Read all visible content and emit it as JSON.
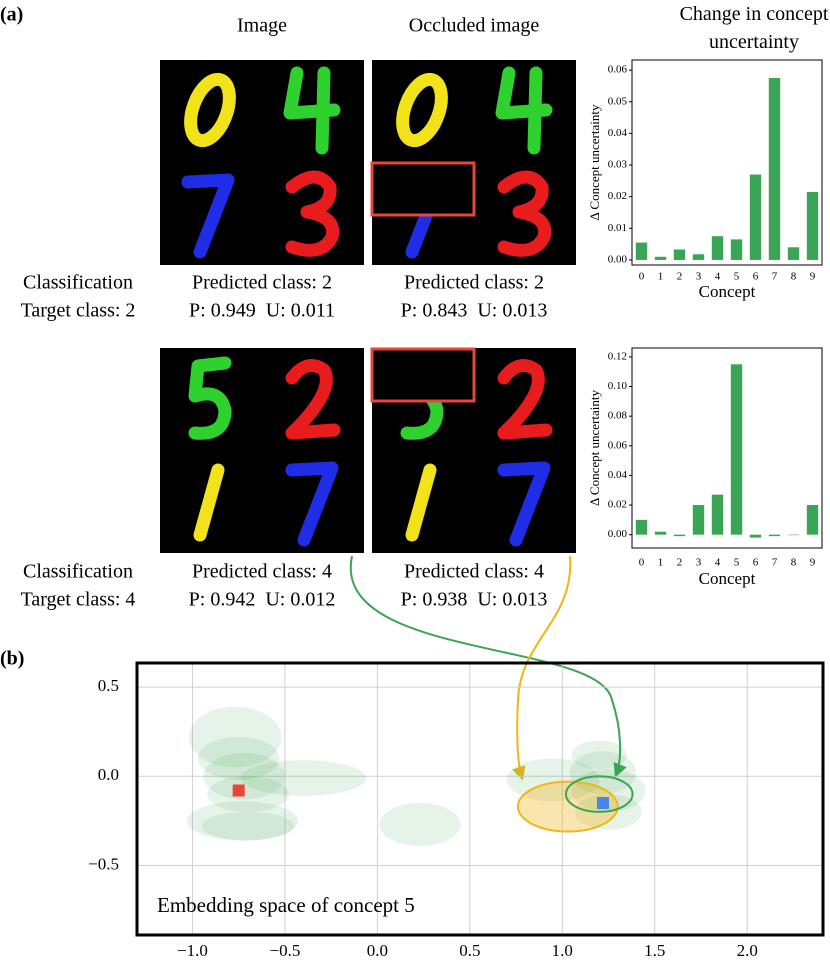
{
  "panel_labels": [
    "(a)",
    "(b)"
  ],
  "column_headers": [
    "Image",
    "Occluded image"
  ],
  "rows": [
    {
      "classification": "Classification",
      "target": "Target class: 2",
      "image": {
        "predicted": "Predicted class: 2",
        "stats": "P: 0.949  U: 0.011"
      },
      "occluded": {
        "predicted": "Predicted class: 2",
        "stats": "P: 0.843  U: 0.013"
      }
    },
    {
      "classification": "Classification",
      "target": "Target class: 4",
      "image": {
        "predicted": "Predicted class: 4",
        "stats": "P: 0.942  U: 0.012"
      },
      "occluded": {
        "predicted": "Predicted class: 4",
        "stats": "P: 0.938  U: 0.013"
      }
    }
  ],
  "chart_data": [
    {
      "type": "bar",
      "title": "Change in concept uncertainty",
      "xlabel": "Concept",
      "ylabel": "Δ Concept uncertainty",
      "categories": [
        "0",
        "1",
        "2",
        "3",
        "4",
        "5",
        "6",
        "7",
        "8",
        "9"
      ],
      "values": [
        0.0055,
        0.001,
        0.0033,
        0.0018,
        0.0075,
        0.0065,
        0.027,
        0.0575,
        0.004,
        0.0215
      ],
      "color": "#3aa655",
      "ylim": [
        -0.0016,
        0.0632
      ],
      "yticks": [
        {
          "value": 0,
          "label": "0.00"
        },
        0.01,
        0.02,
        0.03,
        0.04,
        0.05,
        0.06
      ]
    },
    {
      "type": "bar",
      "xlabel": "Concept",
      "ylabel": "Δ Concept uncertainty",
      "categories": [
        "0",
        "1",
        "2",
        "3",
        "4",
        "5",
        "6",
        "7",
        "8",
        "9"
      ],
      "values": [
        0.01,
        0.002,
        -0.001,
        0.02,
        0.027,
        0.115,
        -0.002,
        -0.001,
        0,
        0.02
      ],
      "color": "#3aa655",
      "ylim": [
        -0.009,
        0.126
      ],
      "yticks": [
        {
          "value": 0,
          "label": "0.00"
        },
        0.02,
        0.04,
        0.06,
        0.08,
        {
          "value": 0.1,
          "label": "0.10"
        },
        0.12
      ]
    },
    {
      "type": "scatter",
      "annotation": "Embedding space of concept 5",
      "grid": true,
      "xlim": [
        -1.3,
        2.41
      ],
      "ylim": [
        -0.89,
        0.635
      ],
      "xticks": [
        {
          "value": -1,
          "label": "−1.0"
        },
        {
          "value": -0.5,
          "label": "−0.5"
        },
        {
          "value": 0,
          "label": "0.0"
        },
        0.5,
        {
          "value": 1,
          "label": "1.0"
        },
        1.5,
        {
          "value": 2,
          "label": "2.0"
        }
      ],
      "yticks": [
        {
          "value": -0.5,
          "label": "−0.5"
        },
        {
          "value": 0,
          "label": "0.0"
        },
        0.5
      ],
      "ellipses": {
        "color": "#3aa655",
        "x": [
          -0.77,
          -0.75,
          -0.72,
          -0.4,
          -0.7,
          -0.73,
          -0.7,
          0.23,
          0.95,
          1.2,
          1.22,
          1.25,
          1.25
        ],
        "y": [
          0.22,
          0.1,
          0.0,
          -0.01,
          -0.1,
          -0.25,
          -0.28,
          -0.27,
          -0.02,
          0.12,
          0.02,
          -0.08,
          -0.2
        ],
        "rx": [
          0.25,
          0.22,
          0.22,
          0.34,
          0.22,
          0.3,
          0.25,
          0.22,
          0.25,
          0.15,
          0.18,
          0.2,
          0.18
        ],
        "ry": [
          0.17,
          0.12,
          0.13,
          0.1,
          0.1,
          0.11,
          0.08,
          0.12,
          0.12,
          0.08,
          0.12,
          0.12,
          0.1
        ]
      },
      "highlight_ellipses": [
        {
          "x": 1.03,
          "y": -0.17,
          "rx": 0.27,
          "ry": 0.14,
          "color": "#f2b516"
        },
        {
          "x": 1.2,
          "y": -0.1,
          "rx": 0.18,
          "ry": 0.1,
          "color": "#3aa655"
        }
      ],
      "points": {
        "x": [
          -0.75,
          1.22
        ],
        "y": [
          -0.08,
          -0.15
        ],
        "colors": [
          "#e8453c",
          "#4a86e8"
        ]
      }
    }
  ]
}
